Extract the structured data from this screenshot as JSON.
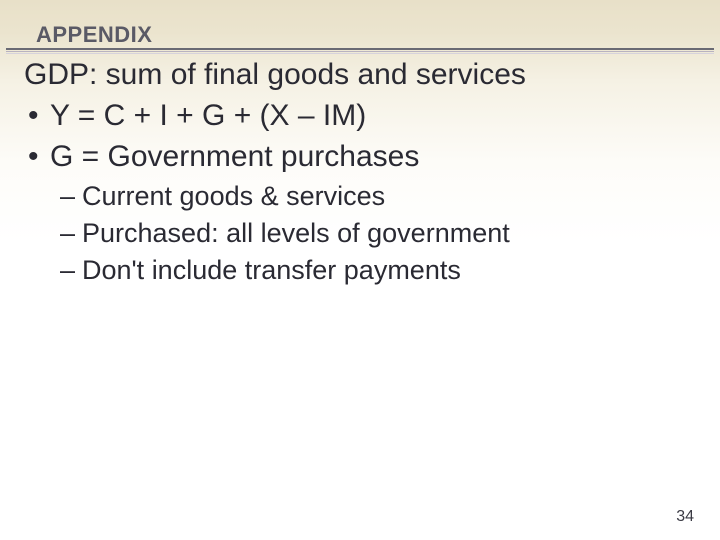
{
  "header": {
    "label": "APPENDIX"
  },
  "title": "GDP: sum of final goods and services",
  "bullets": [
    {
      "marker": "•",
      "text": "Y = C + I + G + (X – IM)"
    },
    {
      "marker": "•",
      "text": "G = Government purchases"
    }
  ],
  "subitems": [
    {
      "marker": "–",
      "text": "Current goods & services"
    },
    {
      "marker": "–",
      "text": "Purchased: all levels of government"
    },
    {
      "marker": "–",
      "text": "Don't include transfer payments"
    }
  ],
  "page_number": "34",
  "style": {
    "background_gradient": [
      "#e8e0c8",
      "#ffffff"
    ],
    "title_fontsize": 30,
    "sub_fontsize": 27,
    "header_fontsize": 22,
    "text_color": "#2a2a33",
    "header_color": "#5a5a66",
    "rule_colors": [
      "#6a6a74",
      "#b8b2c0",
      "#d6d2dc"
    ]
  }
}
